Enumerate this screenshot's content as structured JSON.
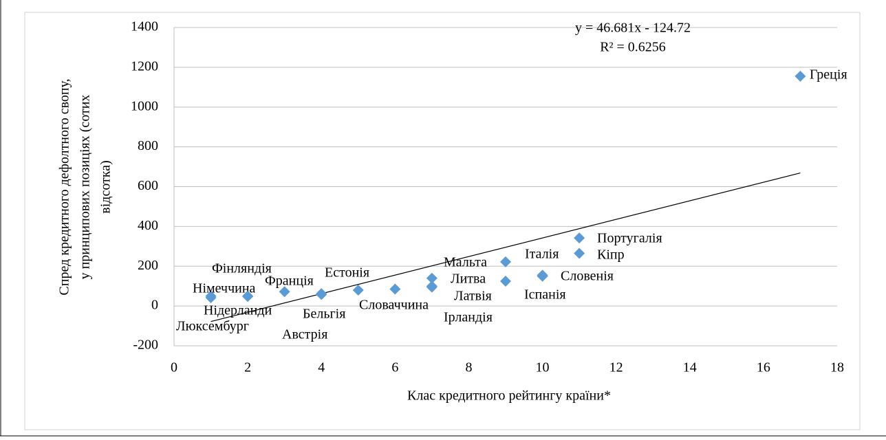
{
  "chart_data": {
    "type": "scatter",
    "x_label": "Клас кредитного рейтингу країни*",
    "y_label": [
      "Спред кредитного дефолтного свопу,",
      "у принципових позиціях (сотих",
      "відсотка)"
    ],
    "xlim": [
      0,
      18
    ],
    "xticks": [
      0,
      2,
      4,
      6,
      8,
      10,
      12,
      14,
      16,
      18
    ],
    "ylim": [
      -200,
      1400
    ],
    "yticks": [
      -200,
      0,
      200,
      400,
      600,
      800,
      1000,
      1200,
      1400
    ],
    "grid": true,
    "color": "#5b9bd5",
    "series": [
      {
        "name": null,
        "color": "#5b9bd5",
        "labels": [
          "Греція",
          "Португалія",
          "Кіпр",
          "Італія",
          "Мальта",
          "Литва",
          "Словенія",
          "Латвія",
          "Іспанія",
          "Ірландія",
          "Естонія",
          "Словаччина",
          "Фінляндія",
          "Франція",
          "Німеччина",
          "Нідерланди",
          "Бельгія",
          "Люксембург",
          "Австрія"
        ],
        "x": [
          17,
          11,
          11,
          9,
          7,
          9,
          10,
          7,
          10,
          7,
          5,
          6,
          2,
          3,
          1,
          2,
          4,
          1,
          4
        ],
        "values": [
          1155,
          342,
          265,
          222,
          140,
          125,
          155,
          100,
          150,
          95,
          80,
          85,
          50,
          72,
          50,
          48,
          62,
          42,
          58
        ]
      }
    ],
    "trendline": {
      "equation": "y = 46.681x - 124.72",
      "r2": "R² = 0.6256",
      "x": [
        1,
        17
      ],
      "y": [
        -78.039,
        668.857
      ]
    }
  }
}
